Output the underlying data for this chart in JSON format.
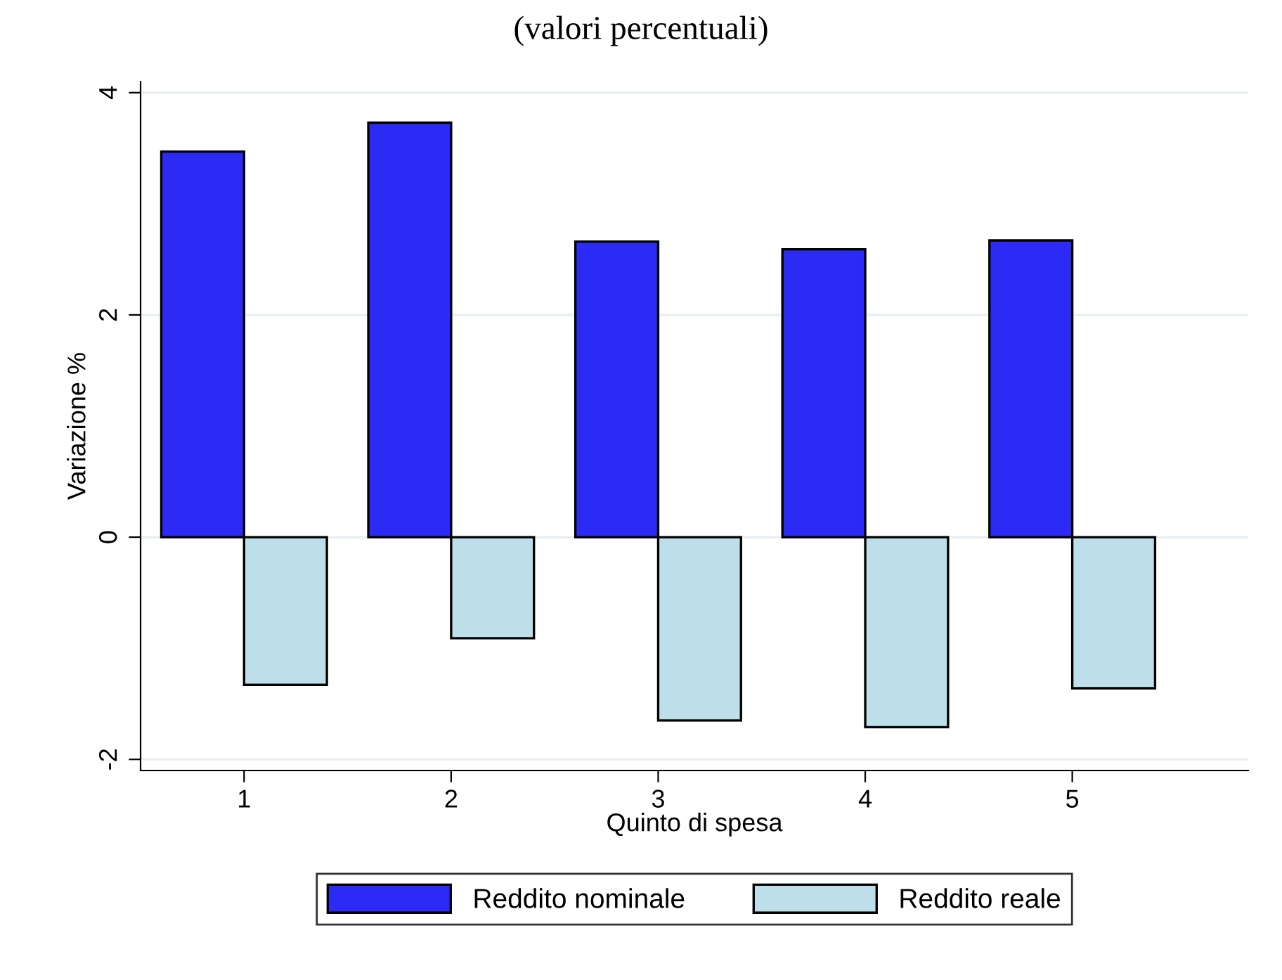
{
  "chart_data": {
    "type": "bar",
    "title": "(valori percentuali)",
    "xlabel": "Quinto di spesa",
    "ylabel": "Variazione %",
    "categories": [
      "1",
      "2",
      "3",
      "4",
      "5"
    ],
    "series": [
      {
        "name": "Reddito nominale",
        "color": "#2b2bf5",
        "values": [
          3.47,
          3.73,
          2.66,
          2.59,
          2.67
        ]
      },
      {
        "name": "Reddito reale",
        "color": "#bcdfe9",
        "values": [
          -1.33,
          -0.91,
          -1.65,
          -1.71,
          -1.36
        ]
      }
    ],
    "ylim": [
      -2.1,
      4.1
    ],
    "yticks": [
      -2,
      0,
      2,
      4
    ],
    "grid": "y",
    "legend": "bottom"
  }
}
